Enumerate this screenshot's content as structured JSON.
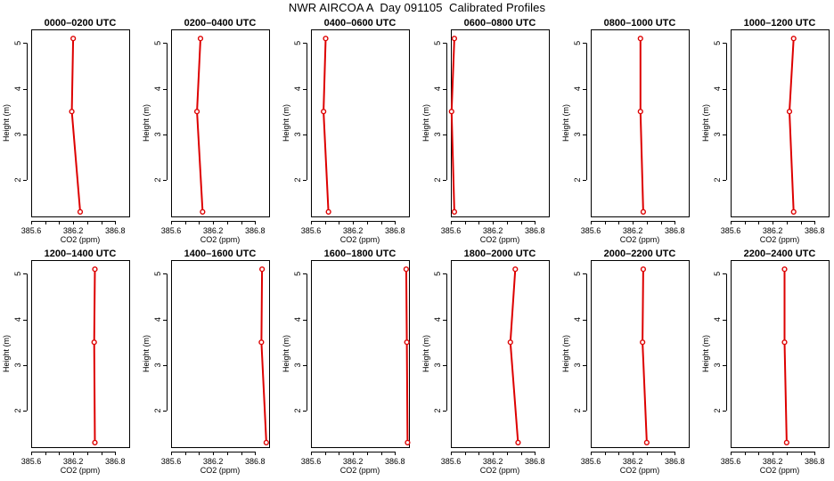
{
  "title": "NWR AIRCOA A  Day 091105  Calibrated Profiles",
  "series_color": "#dd0000",
  "chart_data": [
    {
      "type": "line",
      "title": "0000–0200 UTC",
      "xlabel": "CO2 (ppm)",
      "ylabel": "Height (m)",
      "xlim": [
        385.6,
        387.0
      ],
      "ylim": [
        1.2,
        5.3
      ],
      "xticks": [
        385.6,
        386.2,
        386.8
      ],
      "xtick_labels": [
        "385.6",
        "386.2",
        "386.8"
      ],
      "yticks": [
        2,
        3,
        4,
        5
      ],
      "ytick_labels": [
        "2",
        "3",
        "4",
        "5"
      ],
      "x": [
        386.3,
        386.18,
        386.2
      ],
      "y": [
        1.3,
        3.5,
        5.1
      ]
    },
    {
      "type": "line",
      "title": "0200–0400 UTC",
      "xlabel": "CO2 (ppm)",
      "ylabel": "Height (m)",
      "xlim": [
        385.6,
        387.0
      ],
      "ylim": [
        1.2,
        5.3
      ],
      "xticks": [
        385.6,
        386.2,
        386.8
      ],
      "xtick_labels": [
        "385.6",
        "386.2",
        "386.8"
      ],
      "yticks": [
        2,
        3,
        4,
        5
      ],
      "ytick_labels": [
        "2",
        "3",
        "4",
        "5"
      ],
      "x": [
        386.05,
        385.97,
        386.02
      ],
      "y": [
        1.3,
        3.5,
        5.1
      ]
    },
    {
      "type": "line",
      "title": "0400–0600 UTC",
      "xlabel": "CO2 (ppm)",
      "ylabel": "Height (m)",
      "xlim": [
        385.6,
        387.0
      ],
      "ylim": [
        1.2,
        5.3
      ],
      "xticks": [
        385.6,
        386.2,
        386.8
      ],
      "xtick_labels": [
        "385.6",
        "386.2",
        "386.8"
      ],
      "yticks": [
        2,
        3,
        4,
        5
      ],
      "ytick_labels": [
        "2",
        "3",
        "4",
        "5"
      ],
      "x": [
        385.85,
        385.78,
        385.81
      ],
      "y": [
        1.3,
        3.5,
        5.1
      ]
    },
    {
      "type": "line",
      "title": "0600–0800 UTC",
      "xlabel": "CO2 (ppm)",
      "ylabel": "Height (m)",
      "xlim": [
        385.6,
        387.0
      ],
      "ylim": [
        1.2,
        5.3
      ],
      "xticks": [
        385.6,
        386.2,
        386.8
      ],
      "xtick_labels": [
        "385.6",
        "386.2",
        "386.8"
      ],
      "yticks": [
        2,
        3,
        4,
        5
      ],
      "ytick_labels": [
        "2",
        "3",
        "4",
        "5"
      ],
      "x": [
        385.65,
        385.61,
        385.65
      ],
      "y": [
        1.3,
        3.5,
        5.1
      ]
    },
    {
      "type": "line",
      "title": "0800–1000 UTC",
      "xlabel": "CO2 (ppm)",
      "ylabel": "Height (m)",
      "xlim": [
        385.6,
        387.0
      ],
      "ylim": [
        1.2,
        5.3
      ],
      "xticks": [
        385.6,
        386.2,
        386.8
      ],
      "xtick_labels": [
        "385.6",
        "386.2",
        "386.8"
      ],
      "yticks": [
        2,
        3,
        4,
        5
      ],
      "ytick_labels": [
        "2",
        "3",
        "4",
        "5"
      ],
      "x": [
        386.35,
        386.31,
        386.31
      ],
      "y": [
        1.3,
        3.5,
        5.1
      ]
    },
    {
      "type": "line",
      "title": "1000–1200 UTC",
      "xlabel": "CO2 (ppm)",
      "ylabel": "Height (m)",
      "xlim": [
        385.6,
        387.0
      ],
      "ylim": [
        1.2,
        5.3
      ],
      "xticks": [
        385.6,
        386.2,
        386.8
      ],
      "xtick_labels": [
        "385.6",
        "386.2",
        "386.8"
      ],
      "yticks": [
        2,
        3,
        4,
        5
      ],
      "ytick_labels": [
        "2",
        "3",
        "4",
        "5"
      ],
      "x": [
        386.5,
        386.44,
        386.5
      ],
      "y": [
        1.3,
        3.5,
        5.1
      ]
    },
    {
      "type": "line",
      "title": "1200–1400 UTC",
      "xlabel": "CO2 (ppm)",
      "ylabel": "Height (m)",
      "xlim": [
        385.6,
        387.0
      ],
      "ylim": [
        1.2,
        5.3
      ],
      "xticks": [
        385.6,
        386.2,
        386.8
      ],
      "xtick_labels": [
        "385.6",
        "386.2",
        "386.8"
      ],
      "yticks": [
        2,
        3,
        4,
        5
      ],
      "ytick_labels": [
        "2",
        "3",
        "4",
        "5"
      ],
      "x": [
        386.51,
        386.5,
        386.51
      ],
      "y": [
        1.3,
        3.5,
        5.1
      ]
    },
    {
      "type": "line",
      "title": "1400–1600 UTC",
      "xlabel": "CO2 (ppm)",
      "ylabel": "Height (m)",
      "xlim": [
        385.6,
        387.0
      ],
      "ylim": [
        1.2,
        5.3
      ],
      "xticks": [
        385.6,
        386.2,
        386.8
      ],
      "xtick_labels": [
        "385.6",
        "386.2",
        "386.8"
      ],
      "yticks": [
        2,
        3,
        4,
        5
      ],
      "ytick_labels": [
        "2",
        "3",
        "4",
        "5"
      ],
      "x": [
        386.96,
        386.89,
        386.9
      ],
      "y": [
        1.3,
        3.5,
        5.1
      ]
    },
    {
      "type": "line",
      "title": "1600–1800 UTC",
      "xlabel": "CO2 (ppm)",
      "ylabel": "Height (m)",
      "xlim": [
        385.6,
        387.0
      ],
      "ylim": [
        1.2,
        5.3
      ],
      "xticks": [
        385.6,
        386.2,
        386.8
      ],
      "xtick_labels": [
        "385.6",
        "386.2",
        "386.8"
      ],
      "yticks": [
        2,
        3,
        4,
        5
      ],
      "ytick_labels": [
        "2",
        "3",
        "4",
        "5"
      ],
      "x": [
        386.98,
        386.97,
        386.96
      ],
      "y": [
        1.3,
        3.5,
        5.1
      ]
    },
    {
      "type": "line",
      "title": "1800–2000 UTC",
      "xlabel": "CO2 (ppm)",
      "ylabel": "Height (m)",
      "xlim": [
        385.6,
        387.0
      ],
      "ylim": [
        1.2,
        5.3
      ],
      "xticks": [
        385.6,
        386.2,
        386.8
      ],
      "xtick_labels": [
        "385.6",
        "386.2",
        "386.8"
      ],
      "yticks": [
        2,
        3,
        4,
        5
      ],
      "ytick_labels": [
        "2",
        "3",
        "4",
        "5"
      ],
      "x": [
        386.56,
        386.45,
        386.52
      ],
      "y": [
        1.3,
        3.5,
        5.1
      ]
    },
    {
      "type": "line",
      "title": "2000–2200 UTC",
      "xlabel": "CO2 (ppm)",
      "ylabel": "Height (m)",
      "xlim": [
        385.6,
        387.0
      ],
      "ylim": [
        1.2,
        5.3
      ],
      "xticks": [
        385.6,
        386.2,
        386.8
      ],
      "xtick_labels": [
        "385.6",
        "386.2",
        "386.8"
      ],
      "yticks": [
        2,
        3,
        4,
        5
      ],
      "ytick_labels": [
        "2",
        "3",
        "4",
        "5"
      ],
      "x": [
        386.4,
        386.34,
        386.35
      ],
      "y": [
        1.3,
        3.5,
        5.1
      ]
    },
    {
      "type": "line",
      "title": "2200–2400 UTC",
      "xlabel": "CO2 (ppm)",
      "ylabel": "Height (m)",
      "xlim": [
        385.6,
        387.0
      ],
      "ylim": [
        1.2,
        5.3
      ],
      "xticks": [
        385.6,
        386.2,
        386.8
      ],
      "xtick_labels": [
        "385.6",
        "386.2",
        "386.8"
      ],
      "yticks": [
        2,
        3,
        4,
        5
      ],
      "ytick_labels": [
        "2",
        "3",
        "4",
        "5"
      ],
      "x": [
        386.4,
        386.37,
        386.37
      ],
      "y": [
        1.3,
        3.5,
        5.1
      ]
    }
  ]
}
